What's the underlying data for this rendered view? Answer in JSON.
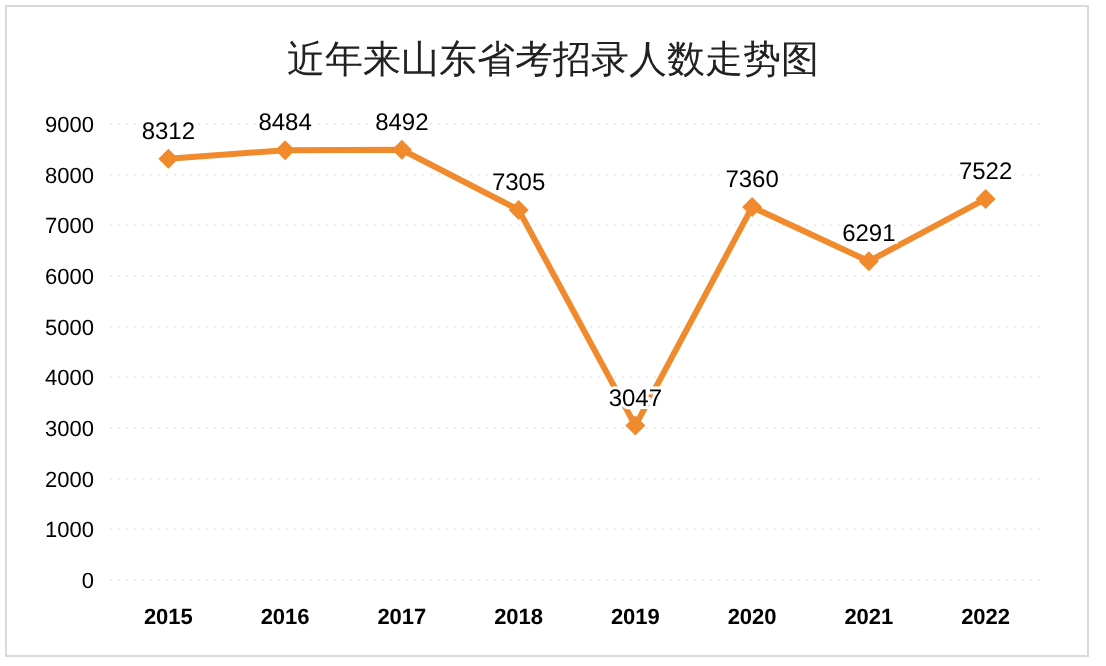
{
  "chart_data": {
    "type": "line",
    "title": "近年来山东省考招录人数走势图",
    "categories": [
      "2015",
      "2016",
      "2017",
      "2018",
      "2019",
      "2020",
      "2021",
      "2022"
    ],
    "series": [
      {
        "color": "#f08a2c",
        "values": [
          8312,
          8484,
          8492,
          7305,
          3047,
          7360,
          6291,
          7522
        ]
      }
    ],
    "ylim": [
      0,
      9000
    ],
    "yticks": [
      0,
      1000,
      2000,
      3000,
      4000,
      5000,
      6000,
      7000,
      8000,
      9000
    ],
    "grid": "y",
    "data_labels": true,
    "marker": "diamond",
    "line_style": "solid"
  }
}
